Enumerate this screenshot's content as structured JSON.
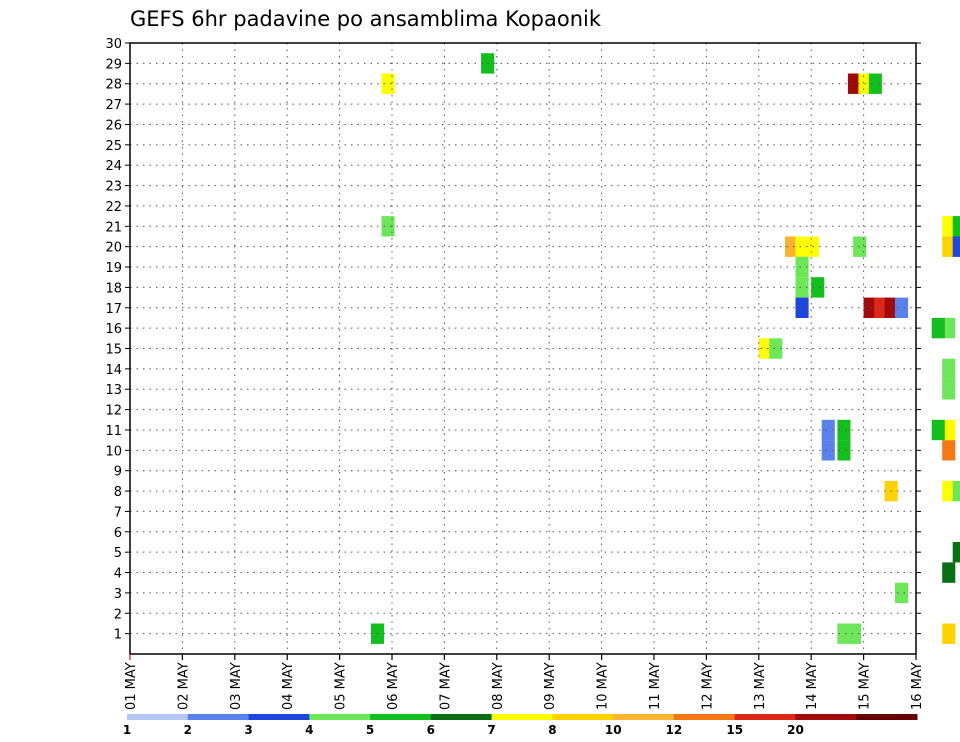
{
  "chart_data": {
    "type": "heatmap",
    "title": "GEFS 6hr padavine po ansamblima Kopaonik",
    "x_labels": [
      "01 MAY",
      "02 MAY",
      "03 MAY",
      "04 MAY",
      "05 MAY",
      "06 MAY",
      "07 MAY",
      "08 MAY",
      "09 MAY",
      "10 MAY",
      "11 MAY",
      "12 MAY",
      "13 MAY",
      "14 MAY",
      "15 MAY",
      "16 MAY"
    ],
    "y_ticks": [
      1,
      2,
      3,
      4,
      5,
      6,
      7,
      8,
      9,
      10,
      11,
      12,
      13,
      14,
      15,
      16,
      17,
      18,
      19,
      20,
      21,
      22,
      23,
      24,
      25,
      26,
      27,
      28,
      29,
      30
    ],
    "ylim": [
      0,
      30
    ],
    "grid": true,
    "legend": {
      "levels": [
        "1",
        "2",
        "3",
        "4",
        "5",
        "6",
        "7",
        "8",
        "10",
        "12",
        "15",
        "20"
      ],
      "colors": [
        "#b4c8f5",
        "#5a82ec",
        "#1e46dc",
        "#6ee65a",
        "#14be1e",
        "#0a6e14",
        "#ffff00",
        "#ffd200",
        "#fab432",
        "#f57814",
        "#dc2814",
        "#a00a0a",
        "#640000"
      ]
    },
    "cells": [
      [
        4.6,
        1,
        4
      ],
      [
        4.8,
        28,
        6
      ],
      [
        4.8,
        21,
        3
      ],
      [
        6.7,
        29,
        4
      ],
      [
        12.0,
        15,
        6
      ],
      [
        12.2,
        15,
        3
      ],
      [
        12.5,
        20,
        8
      ],
      [
        12.7,
        20,
        6
      ],
      [
        12.9,
        20,
        6
      ],
      [
        12.7,
        18,
        3
      ],
      [
        12.7,
        17,
        2
      ],
      [
        12.7,
        19,
        3
      ],
      [
        13.0,
        18,
        4
      ],
      [
        13.2,
        10,
        1
      ],
      [
        13.2,
        11,
        1
      ],
      [
        13.5,
        10,
        4
      ],
      [
        13.5,
        11,
        4
      ],
      [
        13.5,
        1,
        3
      ],
      [
        13.7,
        1,
        3
      ],
      [
        13.7,
        28,
        11
      ],
      [
        13.9,
        28,
        6
      ],
      [
        14.1,
        28,
        4
      ],
      [
        14.0,
        17,
        11
      ],
      [
        14.2,
        17,
        10
      ],
      [
        14.4,
        17,
        11
      ],
      [
        13.8,
        20,
        3
      ],
      [
        14.4,
        8,
        7
      ],
      [
        14.6,
        3,
        3
      ],
      [
        14.6,
        17,
        1
      ],
      [
        15.5,
        1,
        7
      ],
      [
        15.5,
        4,
        5
      ],
      [
        15.5,
        10,
        9
      ],
      [
        15.5,
        11,
        6
      ],
      [
        15.5,
        13,
        3
      ],
      [
        15.5,
        14,
        3
      ],
      [
        15.5,
        16,
        3
      ],
      [
        15.5,
        20,
        7
      ],
      [
        15.5,
        21,
        6
      ],
      [
        15.5,
        8,
        6
      ],
      [
        15.3,
        11,
        4
      ],
      [
        15.3,
        16,
        4
      ],
      [
        15.7,
        5,
        5
      ],
      [
        15.7,
        8,
        3
      ],
      [
        15.7,
        20,
        2
      ],
      [
        15.7,
        21,
        4
      ]
    ]
  }
}
